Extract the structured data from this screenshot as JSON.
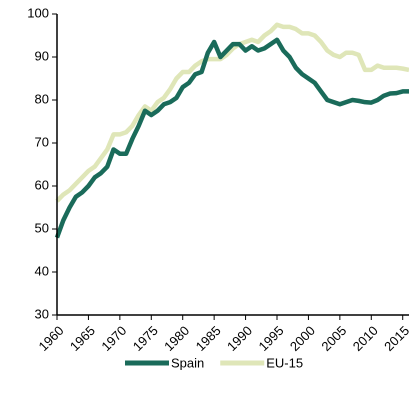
{
  "chart_data": {
    "type": "line",
    "x": [
      1960,
      1961,
      1962,
      1963,
      1964,
      1965,
      1966,
      1967,
      1968,
      1969,
      1970,
      1971,
      1972,
      1973,
      1974,
      1975,
      1976,
      1977,
      1978,
      1979,
      1980,
      1981,
      1982,
      1983,
      1984,
      1985,
      1986,
      1987,
      1988,
      1989,
      1990,
      1991,
      1992,
      1993,
      1994,
      1995,
      1996,
      1997,
      1998,
      1999,
      2000,
      2001,
      2002,
      2003,
      2004,
      2005,
      2006,
      2007,
      2008,
      2009,
      2010,
      2011,
      2012,
      2013,
      2014,
      2015,
      2016
    ],
    "series": [
      {
        "name": "EU-15",
        "color": "#dfe6b8",
        "values": [
          56.5,
          58,
          59,
          60.5,
          62,
          63.5,
          64.5,
          66.5,
          68.5,
          72,
          72,
          72.5,
          74,
          76.5,
          78.5,
          77.5,
          79.5,
          80.5,
          82.5,
          85,
          86.5,
          86.5,
          88,
          89,
          89.5,
          89.5,
          89.5,
          90.5,
          92,
          93,
          93.5,
          94,
          93.5,
          95,
          96,
          97.5,
          97,
          97,
          96.5,
          95.5,
          95.5,
          95,
          93.5,
          91.5,
          90.5,
          90,
          91,
          91,
          90.5,
          87,
          87,
          88,
          87.5,
          87.5,
          87.5,
          87.3,
          87
        ]
      },
      {
        "name": "Spain",
        "color": "#1a6b5a",
        "values": [
          48,
          52,
          55,
          57.5,
          58.5,
          60,
          62,
          63,
          64.5,
          68.5,
          67.5,
          67.5,
          71,
          74,
          77.5,
          76.5,
          77.5,
          79,
          79.5,
          80.5,
          83,
          84,
          86,
          86.5,
          91,
          93.5,
          90,
          91.5,
          93,
          93,
          91.5,
          92.5,
          91.5,
          92,
          93,
          94,
          91.5,
          90,
          87.5,
          86,
          85,
          84,
          82,
          80,
          79.5,
          79,
          79.5,
          80,
          79.8,
          79.5,
          79.4,
          80,
          81,
          81.5,
          81.6,
          82,
          82
        ]
      }
    ],
    "xlim": [
      1960,
      2016
    ],
    "xticks": [
      1960,
      1965,
      1970,
      1975,
      1980,
      1985,
      1990,
      1995,
      2000,
      2005,
      2010,
      2015
    ],
    "ylim": [
      30,
      100
    ],
    "yticks": [
      30,
      40,
      50,
      60,
      70,
      80,
      90,
      100
    ],
    "legend": "bottom"
  }
}
